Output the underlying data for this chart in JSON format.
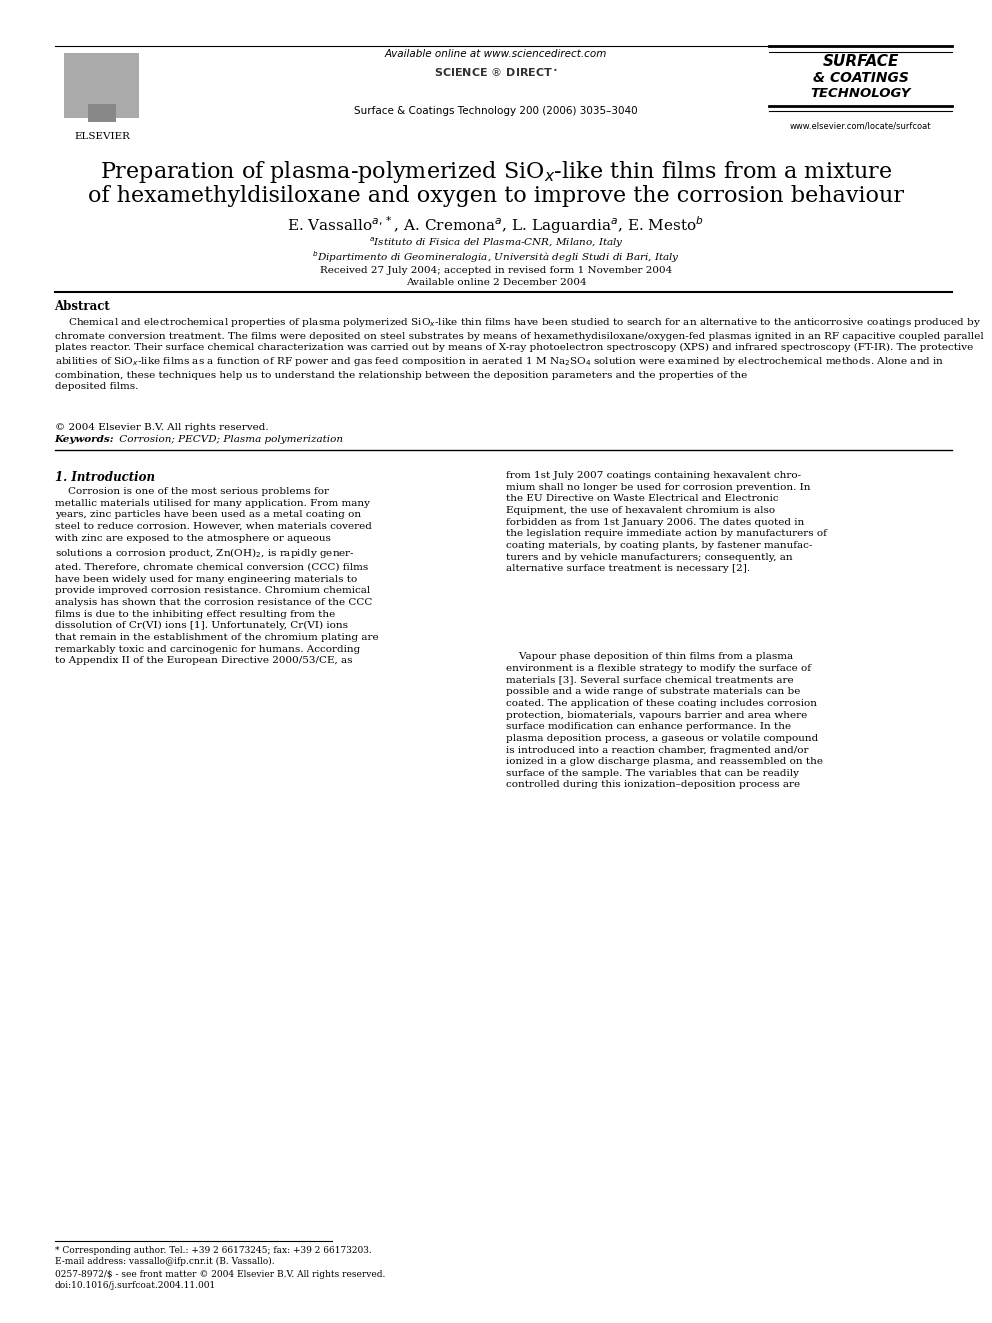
{
  "background_color": "#ffffff",
  "page_width": 9.92,
  "page_height": 13.23,
  "dpi": 100,
  "header": {
    "available_online": "Available online at www.sciencedirect.com",
    "journal_info": "Surface & Coatings Technology 200 (2006) 3035–3040",
    "elsevier_label": "ELSEVIER",
    "website": "www.elsevier.com/locate/surfcoat"
  },
  "title_line1": "Preparation of plasma-polymerized SiO$_x$-like thin films from a mixture",
  "title_line2": "of hexamethyldisiloxane and oxygen to improve the corrosion behaviour",
  "authors": "E. Vassallo$^{a,*}$, A. Cremona$^a$, L. Laguardia$^a$, E. Mesto$^b$",
  "affil_a": "$^a$Istituto di Fisica del Plasma-CNR, Milano, Italy",
  "affil_b": "$^b$Dipartimento di Geomineralogia, Università degli Studi di Bari, Italy",
  "received": "Received 27 July 2004; accepted in revised form 1 November 2004",
  "available": "Available online 2 December 2004",
  "abstract_title": "Abstract",
  "abstract_indent": "    Chemical and electrochemical properties of plasma polymerized SiO$_x$-like thin films have been studied to search for an alternative to the anticorrosive coatings produced by chromate conversion treatment. The films were deposited on steel substrates by means of hexamethydisiloxane/oxygen-fed plasmas ignited in an RF capacitive coupled parallel plates reactor. Their surface chemical characterization was carried out by means of X-ray photoelectron spectroscopy (XPS) and infrared spectroscopy (FT-IR). The protective abilities of SiO$_x$-like films as a function of RF power and gas feed composition in aerated 1 M Na$_2$SO$_4$ solution were examined by electrochemical methods. Alone and in combination, these techniques help us to understand the relationship between the deposition parameters and the properties of the deposited films.",
  "copyright": "© 2004 Elsevier B.V. All rights reserved.",
  "keywords_label": "Keywords:",
  "keywords_text": " Corrosion; PECVD; Plasma polymerization",
  "section1": "1. Introduction",
  "col1_intro_indent": "    Corrosion is one of the most serious problems for metallic materials utilised for many application. From many years, zinc particles have been used as a metal coating on steel to reduce corrosion. However, when materials covered with zinc are exposed to the atmosphere or aqueous solutions a corrosion product, Zn(OH)$_2$, is rapidly generated. Therefore, chromate chemical conversion (CCC) films have been widely used for many engineering materials to provide improved corrosion resistance. Chromium chemical analysis has shown that the corrosion resistance of the CCC films is due to the inhibiting effect resulting from the dissolution of Cr(VI) ions [1]. Unfortunately, Cr(VI) ions that remain in the establishment of the chromium plating are remarkably toxic and carcinogenic for humans. According to Appendix II of the European Directive 2000/53/CE, as",
  "col2_para1": "from 1st July 2007 coatings containing hexavalent chromium shall no longer be used for corrosion prevention. In the EU Directive on Waste Electrical and Electronic Equipment, the use of hexavalent chromium is also forbidden as from 1st January 2006. The dates quoted in the legislation require immediate action by manufacturers of coating materials, by coating plants, by fastener manufacturers and by vehicle manufacturers; consequently, an alternative surface treatment is necessary [2].",
  "col2_para2_indent": "    Vapour phase deposition of thin films from a plasma environment is a flexible strategy to modify the surface of materials [3]. Several surface chemical treatments are possible and a wide range of substrate materials can be coated. The application of these coating includes corrosion protection, biomaterials, vapours barrier and area where surface modification can enhance performance. In the plasma deposition process, a gaseous or volatile compound is introduced into a reaction chamber, fragmented and/or ionized in a glow discharge plasma, and reassembled on the surface of the sample. The variables that can be readily controlled during this ionization–deposition process are",
  "footnote_line": "* Corresponding author. Tel.: +39 2 66173245; fax: +39 2 66173203.",
  "footnote_email": "E-mail address: vassallo@ifp.cnr.it (B. Vassallo).",
  "footnote_issn": "0257-8972/$ - see front matter © 2004 Elsevier B.V. All rights reserved.",
  "footnote_doi": "doi:10.1016/j.surfcoat.2004.11.001"
}
